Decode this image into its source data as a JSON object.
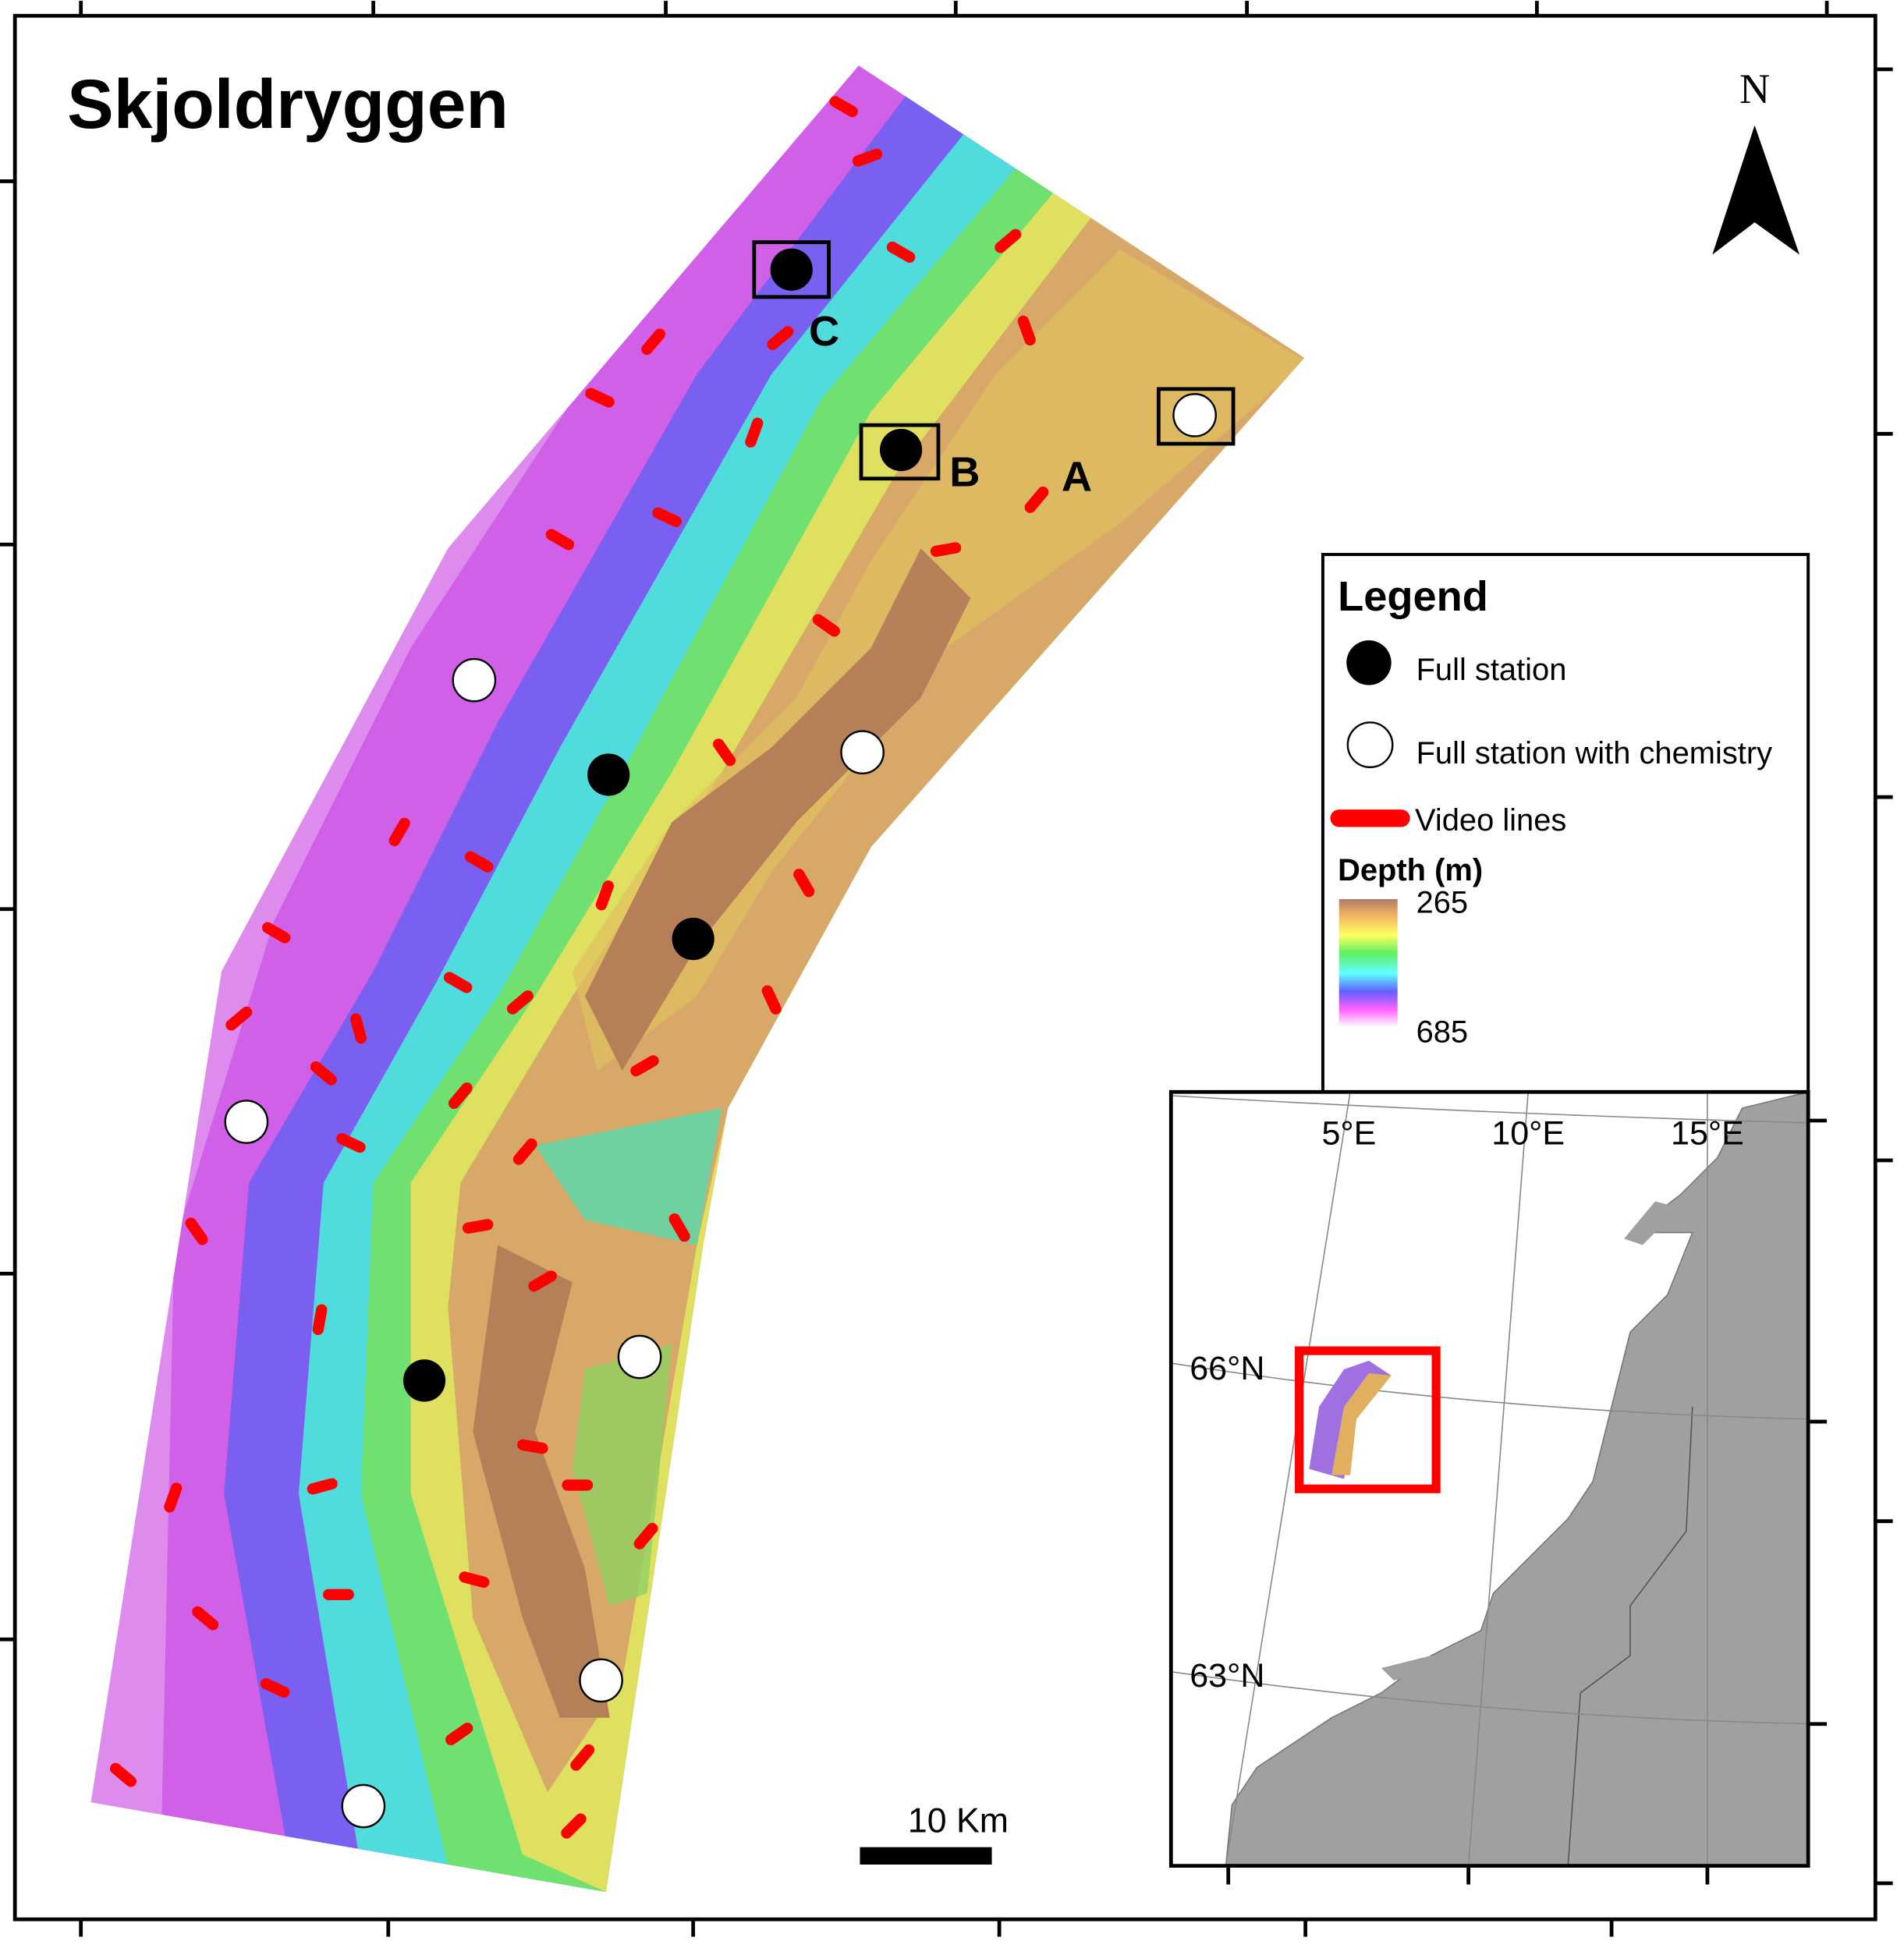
{
  "title": "Skjoldryggen",
  "north_arrow": {
    "label": "N",
    "icon": "north-arrow-icon"
  },
  "site_labels": [
    "A",
    "B",
    "C"
  ],
  "legend": {
    "title": "Legend",
    "items": [
      {
        "label": "Full station",
        "symbol": "black-circle",
        "color": "#000000"
      },
      {
        "label": "Full station with chemistry",
        "symbol": "white-circle",
        "color": "#ffffff"
      },
      {
        "label": "Video lines",
        "symbol": "red-line",
        "color": "#ff0000"
      }
    ],
    "depth_title": "Depth (m)",
    "depth_min": "265",
    "depth_max": "685",
    "depth_colors": [
      "#b07a6a",
      "#f0b060",
      "#ffff60",
      "#60f060",
      "#60ffff",
      "#6060ff",
      "#ff60ff",
      "#ffffff"
    ]
  },
  "scale_bar": {
    "label": "10 Km"
  },
  "inset": {
    "lon_labels": [
      "5°E",
      "10°E",
      "15°E"
    ],
    "lat_labels": [
      "66°N",
      "63°N"
    ],
    "land_color": "#a0a0a0",
    "highlight_color": "#ff0000"
  }
}
